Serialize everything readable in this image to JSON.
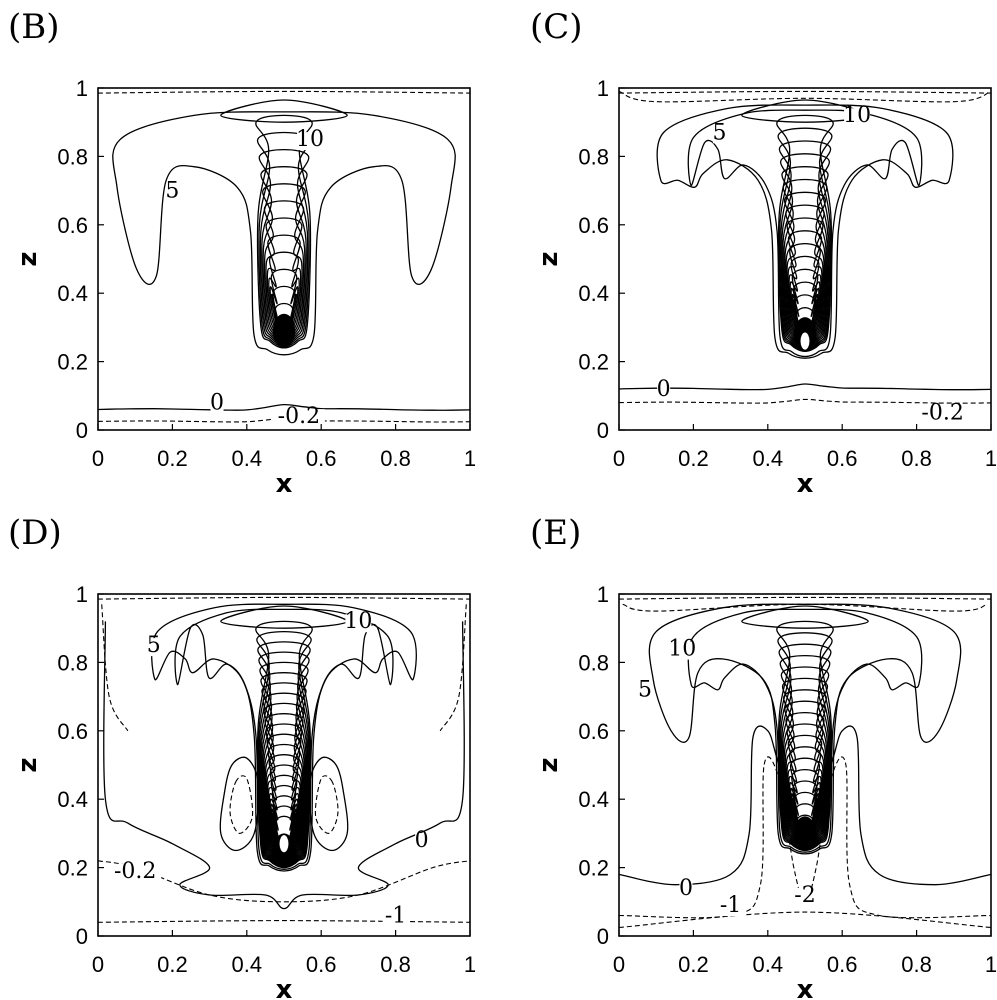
{
  "chart_data": [
    {
      "type": "contour",
      "panel_label": "(B)",
      "xlabel": "x",
      "ylabel": "z",
      "xlim": [
        0,
        1
      ],
      "ylim": [
        0,
        1
      ],
      "xticks": [
        "0",
        "0.2",
        "0.4",
        "0.6",
        "0.8",
        "1"
      ],
      "yticks": [
        "0",
        "0.2",
        "0.4",
        "0.6",
        "0.8",
        "1"
      ],
      "contour_labels": [
        {
          "text": "10",
          "x": 0.57,
          "y": 0.83
        },
        {
          "text": "5",
          "x": 0.2,
          "y": 0.68
        },
        {
          "text": "0",
          "x": 0.32,
          "y": 0.06
        },
        {
          "text": "-0.2",
          "x": 0.54,
          "y": 0.02
        }
      ]
    },
    {
      "type": "contour",
      "panel_label": "(C)",
      "xlabel": "x",
      "ylabel": "z",
      "xlim": [
        0,
        1
      ],
      "ylim": [
        0,
        1
      ],
      "xticks": [
        "0",
        "0.2",
        "0.4",
        "0.6",
        "0.8",
        "1"
      ],
      "yticks": [
        "0",
        "0.2",
        "0.4",
        "0.6",
        "0.8",
        "1"
      ],
      "contour_labels": [
        {
          "text": "10",
          "x": 0.64,
          "y": 0.9
        },
        {
          "text": "5",
          "x": 0.27,
          "y": 0.85
        },
        {
          "text": "0",
          "x": 0.12,
          "y": 0.1
        },
        {
          "text": "-0.2",
          "x": 0.87,
          "y": 0.03
        }
      ]
    },
    {
      "type": "contour",
      "panel_label": "(D)",
      "xlabel": "x",
      "ylabel": "z",
      "xlim": [
        0,
        1
      ],
      "ylim": [
        0,
        1
      ],
      "xticks": [
        "0",
        "0.2",
        "0.4",
        "0.6",
        "0.8",
        "1"
      ],
      "yticks": [
        "0",
        "0.2",
        "0.4",
        "0.6",
        "0.8",
        "1"
      ],
      "contour_labels": [
        {
          "text": "10",
          "x": 0.7,
          "y": 0.9
        },
        {
          "text": "5",
          "x": 0.15,
          "y": 0.83
        },
        {
          "text": "0",
          "x": 0.87,
          "y": 0.26
        },
        {
          "text": "-0.2",
          "x": 0.1,
          "y": 0.17
        },
        {
          "text": "-1",
          "x": 0.8,
          "y": 0.04
        }
      ]
    },
    {
      "type": "contour",
      "panel_label": "(E)",
      "xlabel": "x",
      "ylabel": "z",
      "xlim": [
        0,
        1
      ],
      "ylim": [
        0,
        1
      ],
      "xticks": [
        "0",
        "0.2",
        "0.4",
        "0.6",
        "0.8",
        "1"
      ],
      "yticks": [
        "0",
        "0.2",
        "0.4",
        "0.6",
        "0.8",
        "1"
      ],
      "contour_labels": [
        {
          "text": "10",
          "x": 0.17,
          "y": 0.82
        },
        {
          "text": "5",
          "x": 0.07,
          "y": 0.7
        },
        {
          "text": "0",
          "x": 0.18,
          "y": 0.12
        },
        {
          "text": "-1",
          "x": 0.3,
          "y": 0.07
        },
        {
          "text": "-2",
          "x": 0.5,
          "y": 0.1
        }
      ]
    }
  ]
}
